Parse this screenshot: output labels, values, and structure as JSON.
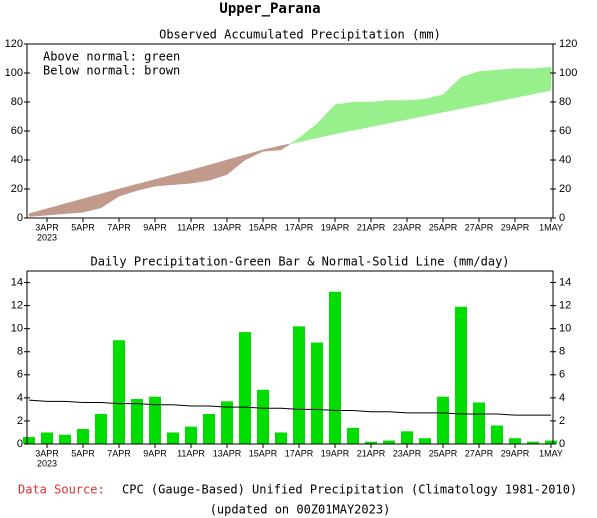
{
  "title": "Upper_Parana",
  "footer": {
    "source_label": "Data Source:",
    "source": "CPC (Gauge-Based) Unified Precipitation (Climatology 1981-2010)",
    "updated": "(updated on 00Z01MAY2023)"
  },
  "chart_data": [
    {
      "type": "area_diff",
      "title": "Observed Accumulated Precipitation (mm)",
      "annotations": [
        "Above normal: green",
        "Below normal: brown"
      ],
      "categories": [
        null,
        "3APR",
        null,
        "5APR",
        null,
        "7APR",
        null,
        "9APR",
        null,
        "11APR",
        null,
        "13APR",
        null,
        "15APR",
        null,
        "17APR",
        null,
        "19APR",
        null,
        "21APR",
        null,
        "23APR",
        null,
        "25APR",
        null,
        "27APR",
        null,
        "29APR",
        null,
        "1MAY"
      ],
      "year_label": "2023",
      "series": [
        {
          "values": [
            1,
            2,
            3,
            4,
            7,
            15,
            19,
            22,
            23,
            24,
            26,
            30,
            40,
            46,
            47,
            55,
            65,
            78,
            80,
            80,
            81,
            81,
            82,
            85,
            97,
            101,
            102,
            103,
            103,
            104
          ]
        },
        {
          "values": [
            3,
            6.4,
            9.8,
            13.2,
            16.6,
            20,
            23.3,
            26.5,
            29.8,
            33,
            36.5,
            40,
            43.5,
            47,
            49.8,
            52.5,
            55.3,
            58,
            60.5,
            63,
            65.5,
            68,
            70.5,
            73,
            75.5,
            78,
            80.5,
            83,
            85.5,
            88
          ]
        }
      ],
      "above_color": "#98f08c",
      "below_color": "#c29a8c",
      "ylim": [
        0,
        120
      ],
      "yticks": [
        0,
        20,
        40,
        60,
        80,
        100,
        120
      ]
    },
    {
      "type": "bar",
      "title": "Daily Precipitation-Green Bar & Normal-Solid Line (mm/day)",
      "categories": [
        null,
        "3APR",
        null,
        "5APR",
        null,
        "7APR",
        null,
        "9APR",
        null,
        "11APR",
        null,
        "13APR",
        null,
        "15APR",
        null,
        "17APR",
        null,
        "19APR",
        null,
        "21APR",
        null,
        "23APR",
        null,
        "25APR",
        null,
        "27APR",
        null,
        "29APR",
        null,
        "1MAY"
      ],
      "year_label": "2023",
      "series": [
        {
          "type": "bar",
          "color": "#00dd00",
          "values": [
            0.6,
            1.0,
            0.8,
            1.3,
            2.6,
            9.0,
            3.9,
            4.1,
            1.0,
            1.5,
            2.6,
            3.7,
            9.7,
            4.7,
            1.0,
            10.2,
            8.8,
            13.2,
            1.4,
            0.2,
            0.3,
            1.1,
            0.5,
            4.1,
            11.9,
            3.6,
            1.6,
            0.5,
            0.2,
            0.3
          ]
        },
        {
          "type": "line",
          "color": "#000000",
          "values": [
            3.8,
            3.7,
            3.7,
            3.6,
            3.6,
            3.5,
            3.5,
            3.4,
            3.4,
            3.3,
            3.3,
            3.2,
            3.2,
            3.1,
            3.1,
            3.0,
            3.0,
            2.9,
            2.9,
            2.8,
            2.8,
            2.7,
            2.7,
            2.7,
            2.6,
            2.6,
            2.6,
            2.5,
            2.5,
            2.5
          ]
        }
      ],
      "ylim": [
        0,
        15
      ],
      "yticks": [
        0,
        2,
        4,
        6,
        8,
        10,
        12,
        14
      ]
    }
  ]
}
